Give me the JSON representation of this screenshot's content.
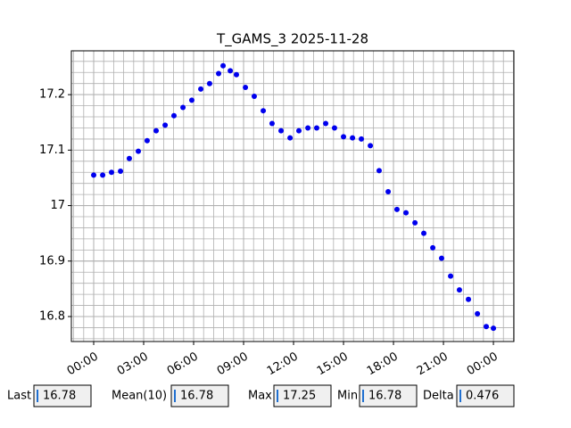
{
  "chart_data": {
    "type": "line",
    "title": "T_GAMS_3 2025-11-28",
    "x": [
      0,
      0.54,
      1.07,
      1.61,
      2.14,
      2.68,
      3.21,
      3.75,
      4.29,
      4.82,
      5.36,
      5.89,
      6.43,
      6.96,
      7.5,
      7.77,
      8.2,
      8.57,
      9.11,
      9.64,
      10.18,
      10.71,
      11.25,
      11.79,
      12.32,
      12.86,
      13.39,
      13.93,
      14.46,
      15,
      15.54,
      16.07,
      16.61,
      17.14,
      17.68,
      18.21,
      18.75,
      19.29,
      19.82,
      20.36,
      20.89,
      21.43,
      21.96,
      22.5,
      23.04,
      23.57,
      24
    ],
    "series": [
      {
        "color": "#0000ee",
        "values": [
          17.055,
          17.055,
          17.06,
          17.062,
          17.085,
          17.098,
          17.117,
          17.135,
          17.145,
          17.162,
          17.177,
          17.19,
          17.21,
          17.22,
          17.238,
          17.252,
          17.243,
          17.236,
          17.213,
          17.197,
          17.171,
          17.148,
          17.135,
          17.122,
          17.135,
          17.14,
          17.14,
          17.148,
          17.14,
          17.124,
          17.122,
          17.12,
          17.108,
          17.063,
          17.025,
          16.993,
          16.987,
          16.969,
          16.95,
          16.924,
          16.905,
          16.873,
          16.848,
          16.831,
          16.805,
          16.782,
          16.779
        ]
      }
    ],
    "xlim": [
      -1.34,
      25.23
    ],
    "xticks": [
      {
        "value": 0,
        "label": "00:00"
      },
      {
        "value": 3,
        "label": "03:00"
      },
      {
        "value": 6,
        "label": "06:00"
      },
      {
        "value": 9,
        "label": "09:00"
      },
      {
        "value": 12,
        "label": "12:00"
      },
      {
        "value": 15,
        "label": "15:00"
      },
      {
        "value": 18,
        "label": "18:00"
      },
      {
        "value": 21,
        "label": "21:00"
      },
      {
        "value": 24,
        "label": "00:00"
      }
    ],
    "ylim": [
      16.755,
      17.279
    ],
    "yticks": [
      16.8,
      16.9,
      17.0,
      17.1,
      17.2
    ],
    "grid": true,
    "minor_grid": true
  },
  "stats": [
    {
      "label": "Last",
      "value": "16.78"
    },
    {
      "label": "Mean(10)",
      "value": "16.78"
    },
    {
      "label": "Max",
      "value": "17.25"
    },
    {
      "label": "Min",
      "value": "16.78"
    },
    {
      "label": "Delta",
      "value": "0.476"
    }
  ]
}
